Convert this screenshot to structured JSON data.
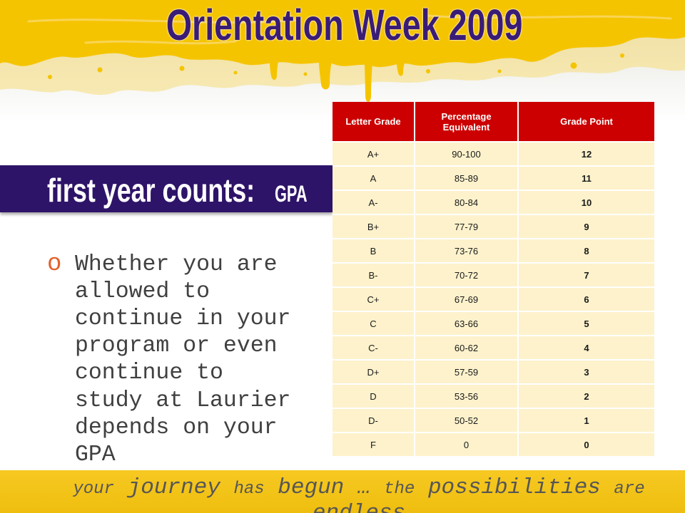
{
  "colors": {
    "title_purple": "#3a1c76",
    "banner_purple": "#2e1468",
    "table_header_red": "#cc0000",
    "table_row_yellow": "#fdf2cc",
    "paint_yellow": "#f5c400",
    "footer_yellow": "#f6c40f",
    "bullet_orange": "#e4622a",
    "body_text_gray": "#404040"
  },
  "title": "Orientation Week 2009",
  "banner": {
    "heading": "first year counts:",
    "subheading": "GPA"
  },
  "bullets": [
    {
      "marker": "o",
      "text": "Whether you are allowed to continue in your program or even continue to study at Laurier depends on your GPA"
    }
  ],
  "gpa_table": {
    "columns": [
      "Letter Grade",
      "Percentage Equivalent",
      "Grade Point"
    ],
    "rows": [
      [
        "A+",
        "90-100",
        "12"
      ],
      [
        "A",
        "85-89",
        "11"
      ],
      [
        "A-",
        "80-84",
        "10"
      ],
      [
        "B+",
        "77-79",
        "9"
      ],
      [
        "B",
        "73-76",
        "8"
      ],
      [
        "B-",
        "70-72",
        "7"
      ],
      [
        "C+",
        "67-69",
        "6"
      ],
      [
        "C",
        "63-66",
        "5"
      ],
      [
        "C-",
        "60-62",
        "4"
      ],
      [
        "D+",
        "57-59",
        "3"
      ],
      [
        "D",
        "53-56",
        "2"
      ],
      [
        "D-",
        "50-52",
        "1"
      ],
      [
        "F",
        "0",
        "0"
      ]
    ]
  },
  "footer": {
    "tagline_words": [
      "your",
      "journey",
      "has",
      "begun",
      "…",
      "the",
      "possibilities",
      "are",
      "endless"
    ]
  }
}
